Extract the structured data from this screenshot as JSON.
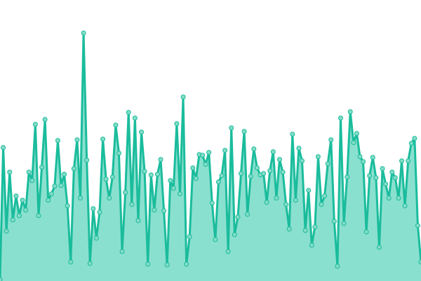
{
  "chart_data": {
    "type": "area",
    "title": "",
    "xlabel": "",
    "ylabel": "",
    "ylim": [
      0,
      400
    ],
    "grid": false,
    "legend": "none",
    "colors": {
      "line": "#1abc9c",
      "fill": "#8ae0cf",
      "marker": "#84dcc7"
    },
    "values": [
      2,
      190,
      71,
      155,
      87,
      121,
      93,
      115,
      101,
      155,
      143,
      223,
      93,
      162,
      230,
      115,
      124,
      135,
      200,
      136,
      152,
      107,
      27,
      160,
      201,
      118,
      353,
      172,
      25,
      103,
      61,
      98,
      202,
      145,
      118,
      148,
      222,
      182,
      42,
      126,
      240,
      109,
      232,
      86,
      212,
      156,
      24,
      151,
      101,
      152,
      173,
      100,
      23,
      143,
      132,
      224,
      124,
      262,
      24,
      63,
      161,
      146,
      180,
      179,
      166,
      183,
      111,
      59,
      141,
      150,
      186,
      42,
      218,
      66,
      91,
      153,
      213,
      95,
      149,
      188,
      161,
      151,
      153,
      112,
      157,
      184,
      118,
      173,
      155,
      109,
      74,
      209,
      115,
      189,
      171,
      72,
      129,
      51,
      77,
      177,
      109,
      121,
      167,
      201,
      85,
      21,
      232,
      82,
      148,
      241,
      197,
      210,
      177,
      170,
      70,
      150,
      176,
      147,
      48,
      160,
      138,
      118,
      155,
      147,
      118,
      171,
      107,
      171,
      196,
      203,
      79,
      27
    ]
  }
}
